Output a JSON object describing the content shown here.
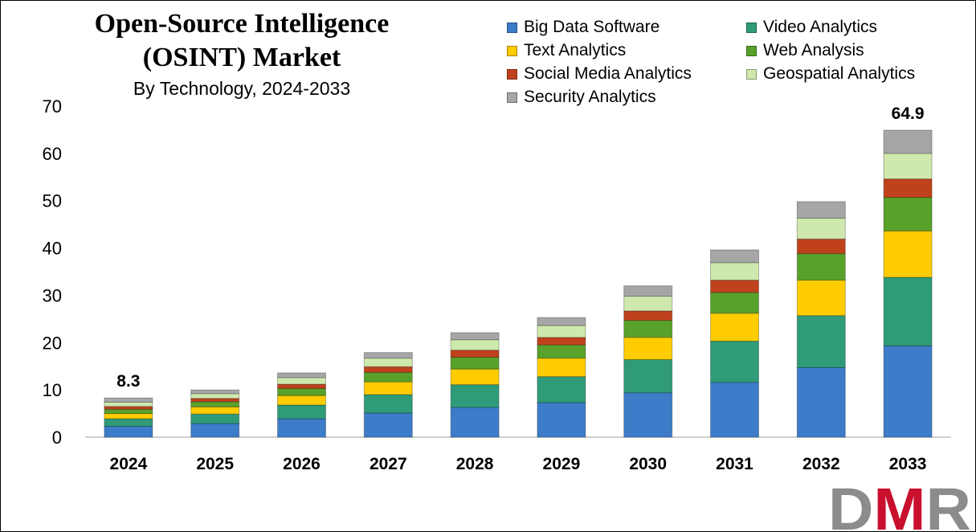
{
  "title_line1": "Open-Source Intelligence",
  "title_line2": "(OSINT) Market",
  "subtitle": "By Technology,  2024-2033",
  "chart_data": {
    "type": "bar",
    "stacked": true,
    "categories": [
      "2024",
      "2025",
      "2026",
      "2027",
      "2028",
      "2029",
      "2030",
      "2031",
      "2032",
      "2033"
    ],
    "series": [
      {
        "name": "Big Data Software",
        "color": "#3d7cc9",
        "values": [
          2.3,
          2.9,
          3.9,
          5.1,
          6.3,
          7.3,
          9.4,
          11.6,
          14.7,
          19.3
        ]
      },
      {
        "name": "Video Analytics",
        "color": "#2f9b79",
        "values": [
          1.6,
          2.0,
          2.9,
          3.9,
          4.8,
          5.5,
          7.0,
          8.7,
          11.0,
          14.5
        ]
      },
      {
        "name": "Text Analytics",
        "color": "#ffcc00",
        "values": [
          1.1,
          1.5,
          2.0,
          2.7,
          3.3,
          3.9,
          4.7,
          5.9,
          7.5,
          9.8
        ]
      },
      {
        "name": "Web Analysis",
        "color": "#58a12a",
        "values": [
          0.9,
          1.1,
          1.5,
          2.0,
          2.5,
          2.8,
          3.6,
          4.4,
          5.6,
          7.1
        ]
      },
      {
        "name": "Social Media Analytics",
        "color": "#c0421c",
        "values": [
          0.6,
          0.7,
          0.9,
          1.2,
          1.5,
          1.6,
          2.0,
          2.6,
          3.1,
          3.9
        ]
      },
      {
        "name": "Geospatial Analytics",
        "color": "#cfe8ad",
        "values": [
          0.9,
          1.0,
          1.4,
          1.8,
          2.2,
          2.5,
          3.1,
          3.7,
          4.4,
          5.4
        ]
      },
      {
        "name": "Security Analytics",
        "color": "#a6a6a6",
        "values": [
          0.9,
          0.8,
          1.0,
          1.2,
          1.5,
          1.7,
          2.2,
          2.7,
          3.5,
          4.9
        ]
      }
    ],
    "data_labels": [
      {
        "category": "2024",
        "text": "8.3"
      },
      {
        "category": "2033",
        "text": "64.9"
      }
    ],
    "ylim": [
      0,
      70
    ],
    "yticks": [
      0,
      10,
      20,
      30,
      40,
      50,
      60,
      70
    ],
    "xlabel": "",
    "ylabel": "",
    "grid": false,
    "legend_position": "top-right"
  },
  "logo": {
    "text": "DMR",
    "colors": [
      "#8c8c8c",
      "#c8102e",
      "#8c8c8c"
    ]
  }
}
